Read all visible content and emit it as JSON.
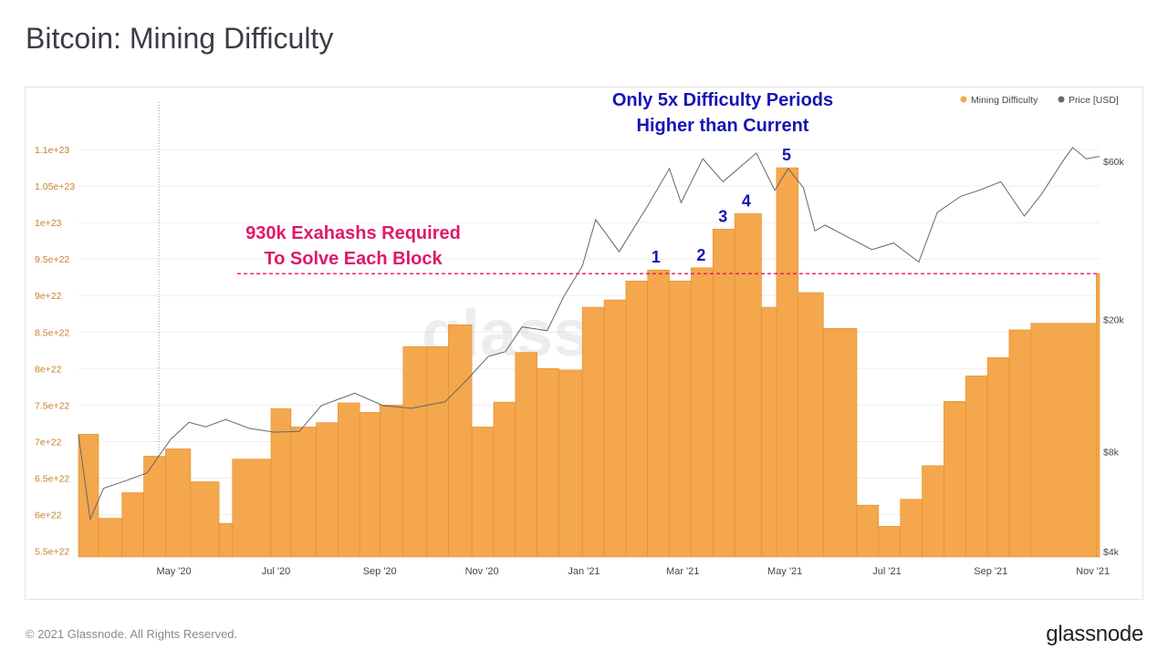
{
  "title": "Bitcoin: Mining Difficulty",
  "footer": {
    "copyright": "© 2021 Glassnode. All Rights Reserved.",
    "brand": "glassnode"
  },
  "watermark": "glassnode",
  "colors": {
    "bar": "#F4A74D",
    "bar_edge": "#E08E2A",
    "price": "#666666",
    "annotation_blue": "#1515B5",
    "annotation_pink": "#E0186A",
    "left_axis_text": "#C7822A",
    "grid": "#EEEEEE"
  },
  "chart_data": {
    "type": "bar",
    "title": "Bitcoin: Mining Difficulty",
    "legend": [
      {
        "name": "Mining Difficulty",
        "color": "#F4A74D"
      },
      {
        "name": "Price [USD]",
        "color": "#666666"
      }
    ],
    "legend_position": "top-right",
    "grid": true,
    "x_axis": {
      "type": "date",
      "range": [
        "2020-03-05",
        "2021-11-05"
      ],
      "ticks": [
        {
          "date": "2020-05-01",
          "label": "May '20"
        },
        {
          "date": "2020-07-01",
          "label": "Jul '20"
        },
        {
          "date": "2020-09-01",
          "label": "Sep '20"
        },
        {
          "date": "2020-11-01",
          "label": "Nov '20"
        },
        {
          "date": "2021-01-01",
          "label": "Jan '21"
        },
        {
          "date": "2021-03-01",
          "label": "Mar '21"
        },
        {
          "date": "2021-05-01",
          "label": "May '21"
        },
        {
          "date": "2021-07-01",
          "label": "Jul '21"
        },
        {
          "date": "2021-09-01",
          "label": "Sep '21"
        },
        {
          "date": "2021-11-01",
          "label": "Nov '21"
        }
      ]
    },
    "left_axis": {
      "ylim": [
        5.42e+22,
        1.12e+23
      ],
      "ticks": [
        {
          "value": 5.5e+22,
          "label": "5.5e+22"
        },
        {
          "value": 6e+22,
          "label": "6e+22"
        },
        {
          "value": 6.5e+22,
          "label": "6.5e+22"
        },
        {
          "value": 7e+22,
          "label": "7e+22"
        },
        {
          "value": 7.5e+22,
          "label": "7.5e+22"
        },
        {
          "value": 8e+22,
          "label": "8e+22"
        },
        {
          "value": 8.5e+22,
          "label": "8.5e+22"
        },
        {
          "value": 9e+22,
          "label": "9e+22"
        },
        {
          "value": 9.5e+22,
          "label": "9.5e+22"
        },
        {
          "value": 1e+23,
          "label": "1e+23"
        },
        {
          "value": 1.05e+23,
          "label": "1.05e+23"
        },
        {
          "value": 1.1e+23,
          "label": "1.1e+23"
        }
      ]
    },
    "right_axis": {
      "scale": "log",
      "ylim": [
        3850,
        72000
      ],
      "ticks": [
        {
          "value": 4000,
          "label": "$4k"
        },
        {
          "value": 8000,
          "label": "$8k"
        },
        {
          "value": 20000,
          "label": "$20k"
        },
        {
          "value": 60000,
          "label": "$60k"
        }
      ]
    },
    "series": [
      {
        "name": "Mining Difficulty",
        "kind": "step-bar",
        "points": [
          [
            "2020-03-05",
            7.1e+22
          ],
          [
            "2020-03-17",
            5.95e+22
          ],
          [
            "2020-03-31",
            6.3e+22
          ],
          [
            "2020-04-13",
            6.8e+22
          ],
          [
            "2020-04-26",
            6.9e+22
          ],
          [
            "2020-05-11",
            6.45e+22
          ],
          [
            "2020-05-28",
            5.88e+22
          ],
          [
            "2020-06-05",
            6.76e+22
          ],
          [
            "2020-06-28",
            7.45e+22
          ],
          [
            "2020-07-10",
            7.2e+22
          ],
          [
            "2020-07-25",
            7.26e+22
          ],
          [
            "2020-08-07",
            7.53e+22
          ],
          [
            "2020-08-20",
            7.4e+22
          ],
          [
            "2020-09-01",
            7.5e+22
          ],
          [
            "2020-09-15",
            8.3e+22
          ],
          [
            "2020-09-29",
            8.3e+22
          ],
          [
            "2020-10-12",
            8.6e+22
          ],
          [
            "2020-10-26",
            7.2e+22
          ],
          [
            "2020-11-08",
            7.54e+22
          ],
          [
            "2020-11-21",
            8.22e+22
          ],
          [
            "2020-12-04",
            8e+22
          ],
          [
            "2020-12-17",
            7.98e+22
          ],
          [
            "2020-12-31",
            8.84e+22
          ],
          [
            "2021-01-13",
            8.94e+22
          ],
          [
            "2021-01-26",
            9.2e+22
          ],
          [
            "2021-02-08",
            9.35e+22
          ],
          [
            "2021-02-21",
            9.2e+22
          ],
          [
            "2021-03-06",
            9.38e+22
          ],
          [
            "2021-03-19",
            9.91e+22
          ],
          [
            "2021-04-01",
            1.012e+23
          ],
          [
            "2021-04-17",
            8.84e+22
          ],
          [
            "2021-04-26",
            1.075e+23
          ],
          [
            "2021-05-09",
            9.04e+22
          ],
          [
            "2021-05-24",
            8.55e+22
          ],
          [
            "2021-06-13",
            6.13e+22
          ],
          [
            "2021-06-26",
            5.84e+22
          ],
          [
            "2021-07-09",
            6.21e+22
          ],
          [
            "2021-07-22",
            6.67e+22
          ],
          [
            "2021-08-04",
            7.55e+22
          ],
          [
            "2021-08-17",
            7.9e+22
          ],
          [
            "2021-08-30",
            8.15e+22
          ],
          [
            "2021-09-12",
            8.53e+22
          ],
          [
            "2021-09-25",
            8.62e+22
          ],
          [
            "2021-11-03",
            9.3e+22
          ]
        ],
        "end_date": "2021-11-05"
      },
      {
        "name": "Price [USD]",
        "kind": "line",
        "points": [
          [
            "2020-03-05",
            9000
          ],
          [
            "2020-03-12",
            5000
          ],
          [
            "2020-03-20",
            6200
          ],
          [
            "2020-04-01",
            6500
          ],
          [
            "2020-04-15",
            6900
          ],
          [
            "2020-04-29",
            8700
          ],
          [
            "2020-05-10",
            9800
          ],
          [
            "2020-05-20",
            9500
          ],
          [
            "2020-06-01",
            10000
          ],
          [
            "2020-06-15",
            9400
          ],
          [
            "2020-06-30",
            9150
          ],
          [
            "2020-07-15",
            9200
          ],
          [
            "2020-07-28",
            11000
          ],
          [
            "2020-08-17",
            12000
          ],
          [
            "2020-09-03",
            11000
          ],
          [
            "2020-09-20",
            10800
          ],
          [
            "2020-10-10",
            11300
          ],
          [
            "2020-10-22",
            13000
          ],
          [
            "2020-11-05",
            15500
          ],
          [
            "2020-11-15",
            16000
          ],
          [
            "2020-11-25",
            19000
          ],
          [
            "2020-12-10",
            18500
          ],
          [
            "2020-12-20",
            23500
          ],
          [
            "2020-12-31",
            29000
          ],
          [
            "2021-01-08",
            40000
          ],
          [
            "2021-01-22",
            32000
          ],
          [
            "2021-02-08",
            44000
          ],
          [
            "2021-02-21",
            57000
          ],
          [
            "2021-02-28",
            45000
          ],
          [
            "2021-03-13",
            61000
          ],
          [
            "2021-03-25",
            52000
          ],
          [
            "2021-04-14",
            63500
          ],
          [
            "2021-04-25",
            49000
          ],
          [
            "2021-05-03",
            57000
          ],
          [
            "2021-05-12",
            50000
          ],
          [
            "2021-05-19",
            37000
          ],
          [
            "2021-05-25",
            38500
          ],
          [
            "2021-06-05",
            36000
          ],
          [
            "2021-06-22",
            32500
          ],
          [
            "2021-07-05",
            34000
          ],
          [
            "2021-07-20",
            29800
          ],
          [
            "2021-07-31",
            42000
          ],
          [
            "2021-08-14",
            47000
          ],
          [
            "2021-08-25",
            49000
          ],
          [
            "2021-09-07",
            52000
          ],
          [
            "2021-09-21",
            41000
          ],
          [
            "2021-10-01",
            47500
          ],
          [
            "2021-10-15",
            61000
          ],
          [
            "2021-10-20",
            66000
          ],
          [
            "2021-10-28",
            61000
          ],
          [
            "2021-11-05",
            62000
          ]
        ]
      }
    ],
    "annotations": {
      "top_note": [
        "Only 5x Difficulty Periods",
        "Higher than Current"
      ],
      "threshold_note": [
        "930k Exahashs Required",
        "To Solve Each Block"
      ],
      "threshold_value": 9.3e+22,
      "vertical_marker_date": "2020-04-22",
      "period_labels": [
        {
          "label": "1",
          "date": "2021-02-13",
          "value": 9.35e+22
        },
        {
          "label": "2",
          "date": "2021-03-12",
          "value": 9.38e+22
        },
        {
          "label": "3",
          "date": "2021-03-25",
          "value": 9.91e+22
        },
        {
          "label": "4",
          "date": "2021-04-08",
          "value": 1.012e+23
        },
        {
          "label": "5",
          "date": "2021-05-02",
          "value": 1.075e+23
        }
      ]
    }
  }
}
